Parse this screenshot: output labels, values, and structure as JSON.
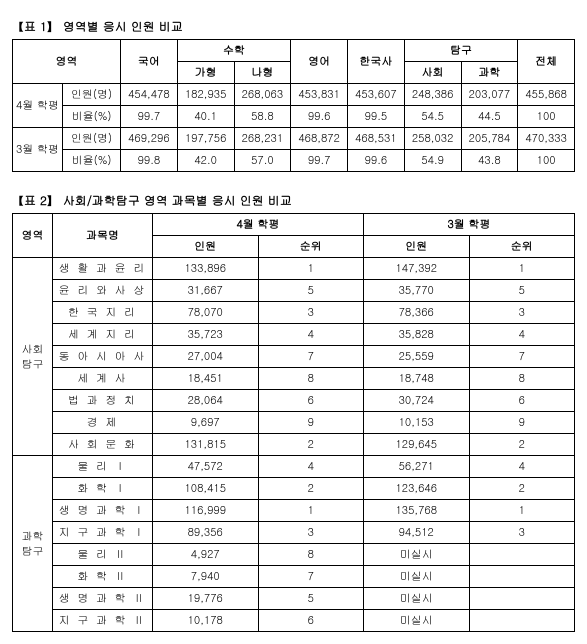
{
  "table1": {
    "title": "【표 1】 영역별 응시 인원 비교",
    "head": {
      "domain": "영역",
      "korean": "국어",
      "math": "수학",
      "math_a": "가형",
      "math_b": "나형",
      "english": "영어",
      "history": "한국사",
      "explore": "탐구",
      "explore_soc": "사회",
      "explore_sci": "과학",
      "total": "전체"
    },
    "rows": {
      "april": "4월 학평",
      "march": "3월 학평",
      "count": "인원(명)",
      "ratio": "비율(%)"
    },
    "april_count": {
      "kor": "454,478",
      "ma": "182,935",
      "mb": "268,063",
      "eng": "453,831",
      "his": "453,607",
      "soc": "248,386",
      "sci": "203,077",
      "tot": "455,868"
    },
    "april_ratio": {
      "kor": "99.7",
      "ma": "40.1",
      "mb": "58.8",
      "eng": "99.6",
      "his": "99.5",
      "soc": "54.5",
      "sci": "44.5",
      "tot": "100"
    },
    "march_count": {
      "kor": "469,296",
      "ma": "197,756",
      "mb": "268,231",
      "eng": "468,872",
      "his": "468,531",
      "soc": "258,032",
      "sci": "205,784",
      "tot": "470,333"
    },
    "march_ratio": {
      "kor": "99.8",
      "ma": "42.0",
      "mb": "57.0",
      "eng": "99.7",
      "his": "99.6",
      "soc": "54.9",
      "sci": "43.8",
      "tot": "100"
    }
  },
  "table2": {
    "title": "【표 2】 사회/과학탐구 영역 과목별 응시 인원 비교",
    "head": {
      "domain": "영역",
      "subject": "과목명",
      "april": "4월 학평",
      "march": "3월 학평",
      "count": "인원",
      "rank": "순위"
    },
    "domains": {
      "soc": "사회\n탐구",
      "sci": "과학\n탐구"
    },
    "soc": [
      {
        "name": "생 활 과 윤 리",
        "ac": "133,896",
        "ar": "1",
        "mc": "147,392",
        "mr": "1"
      },
      {
        "name": "윤 리 와 사 상",
        "ac": "31,667",
        "ar": "5",
        "mc": "35,770",
        "mr": "5"
      },
      {
        "name": "한 국 지 리",
        "ac": "78,070",
        "ar": "3",
        "mc": "78,366",
        "mr": "3"
      },
      {
        "name": "세 계 지 리",
        "ac": "35,723",
        "ar": "4",
        "mc": "35,828",
        "mr": "4"
      },
      {
        "name": "동 아 시 아 사",
        "ac": "27,004",
        "ar": "7",
        "mc": "25,559",
        "mr": "7"
      },
      {
        "name": "세 계 사",
        "ac": "18,451",
        "ar": "8",
        "mc": "18,748",
        "mr": "8"
      },
      {
        "name": "법 과 정 치",
        "ac": "28,064",
        "ar": "6",
        "mc": "30,724",
        "mr": "6"
      },
      {
        "name": "경 제",
        "ac": "9,697",
        "ar": "9",
        "mc": "10,153",
        "mr": "9"
      },
      {
        "name": "사 회 문 화",
        "ac": "131,815",
        "ar": "2",
        "mc": "129,645",
        "mr": "2"
      }
    ],
    "sci": [
      {
        "name": "물 리 Ⅰ",
        "ac": "47,572",
        "ar": "4",
        "mc": "56,271",
        "mr": "4"
      },
      {
        "name": "화 학 Ⅰ",
        "ac": "108,415",
        "ar": "2",
        "mc": "123,646",
        "mr": "2"
      },
      {
        "name": "생 명 과 학 Ⅰ",
        "ac": "116,999",
        "ar": "1",
        "mc": "135,768",
        "mr": "1"
      },
      {
        "name": "지 구 과 학 Ⅰ",
        "ac": "89,356",
        "ar": "3",
        "mc": "94,512",
        "mr": "3"
      },
      {
        "name": "물 리 Ⅱ",
        "ac": "4,927",
        "ar": "8",
        "mc": "미실시",
        "mr": ""
      },
      {
        "name": "화 학 Ⅱ",
        "ac": "7,940",
        "ar": "7",
        "mc": "미실시",
        "mr": ""
      },
      {
        "name": "생 명 과 학 Ⅱ",
        "ac": "19,776",
        "ar": "5",
        "mc": "미실시",
        "mr": ""
      },
      {
        "name": "지 구 과 학 Ⅱ",
        "ac": "10,178",
        "ar": "6",
        "mc": "미실시",
        "mr": ""
      }
    ]
  }
}
